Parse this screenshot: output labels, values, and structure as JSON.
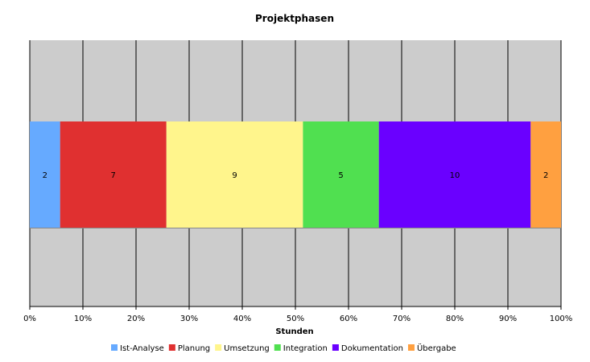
{
  "chart_data": {
    "type": "bar",
    "orientation": "horizontal-stacked-100",
    "title": "Projektphasen",
    "xlabel": "Stunden",
    "ylabel": "",
    "xlim": [
      0,
      100
    ],
    "x_ticks": [
      "0%",
      "10%",
      "20%",
      "30%",
      "40%",
      "50%",
      "60%",
      "70%",
      "80%",
      "90%",
      "100%"
    ],
    "grid": true,
    "legend_position": "bottom",
    "series": [
      {
        "name": "Ist-Analyse",
        "values": [
          2
        ],
        "color": "#66aaff"
      },
      {
        "name": "Planung",
        "values": [
          7
        ],
        "color": "#e03030"
      },
      {
        "name": "Umsetzung",
        "values": [
          9
        ],
        "color": "#fff58c"
      },
      {
        "name": "Integration",
        "values": [
          5
        ],
        "color": "#50e050"
      },
      {
        "name": "Dokumentation",
        "values": [
          10
        ],
        "color": "#6a00ff"
      },
      {
        "name": "Übergabe",
        "values": [
          2
        ],
        "color": "#ffa040"
      }
    ],
    "plot_background": "#cccccc"
  }
}
